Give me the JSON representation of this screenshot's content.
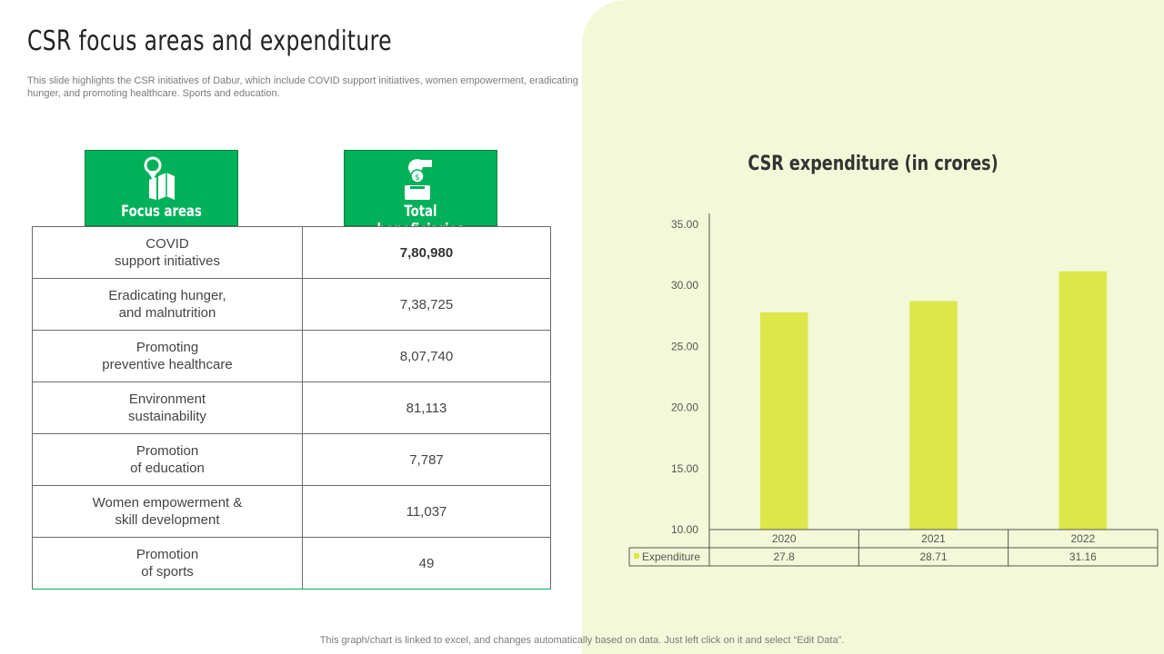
{
  "header": {
    "title": "CSR focus areas and expenditure",
    "subtitle": "This slide highlights the CSR initiatives of Dabur, which include COVID support initiatives, women empowerment, eradicating hunger, and promoting healthcare. Sports and education."
  },
  "table": {
    "headers": {
      "focus": "Focus areas",
      "beneficiaries": "Total beneficiaries"
    },
    "rows": [
      {
        "area": "COVID\nsupport initiatives",
        "value": "7,80,980"
      },
      {
        "area": "Eradicating hunger,\nand malnutrition",
        "value": "7,38,725"
      },
      {
        "area": "Promoting\npreventive healthcare",
        "value": "8,07,740"
      },
      {
        "area": "Environment\nsustainability",
        "value": "81,113"
      },
      {
        "area": "Promotion\nof education",
        "value": "7,787"
      },
      {
        "area": "Women empowerment &\nskill development",
        "value": "11,037"
      },
      {
        "area": "Promotion\nof sports",
        "value": "49"
      }
    ]
  },
  "chart_data": {
    "type": "bar",
    "title": "CSR expenditure  (in crores)",
    "categories": [
      "2020",
      "2021",
      "2022"
    ],
    "series": [
      {
        "name": "Expenditure",
        "values": [
          27.8,
          28.71,
          31.16
        ],
        "labels": [
          "27.8",
          "28.71",
          "31.16"
        ],
        "color": "#dce84a"
      }
    ],
    "ylim": [
      10,
      35
    ],
    "yticks": [
      "10.00",
      "15.00",
      "20.00",
      "25.00",
      "30.00",
      "35.00"
    ],
    "xlabel": "",
    "ylabel": "",
    "legend": "data-table",
    "grid": false
  },
  "colors": {
    "green": "#00b159",
    "bar": "#dce84a",
    "panel": "#f3f8d8"
  },
  "footer": {
    "note": "This graph/chart is linked to excel,  and changes automatically based on data. Just left click on it and select “Edit Data”."
  }
}
